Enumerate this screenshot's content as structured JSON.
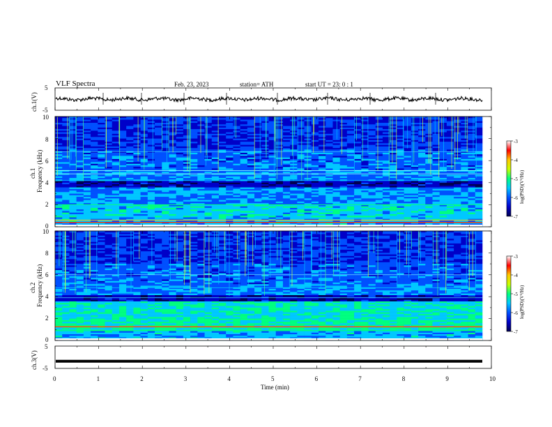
{
  "header": {
    "title": "VLF  Spectra",
    "date": "Feb. 23, 2023",
    "station": "station= ATH",
    "start": "start  UT  =    23: 0   : 1"
  },
  "chart_data": [
    {
      "type": "line",
      "name": "ch1-waveform",
      "ylabel": "ch.1(V)",
      "yticks": [
        "5",
        "-5"
      ],
      "ylim": [
        -5,
        5
      ],
      "xlim": [
        0,
        10
      ],
      "description_level": 0
    },
    {
      "type": "heatmap",
      "name": "ch1-spectrogram",
      "ylabel_top": "ch.1",
      "ylabel": "Frequency (kHz)",
      "yticks": [
        "10",
        "8",
        "6",
        "4",
        "2",
        "0"
      ],
      "ylim": [
        0,
        10
      ],
      "xlim": [
        0,
        10
      ],
      "colorbar": {
        "label": "log(PSD)(V²/Hz)",
        "ticks": [
          "-3",
          "-4",
          "-5",
          "-6",
          "-7"
        ],
        "range": [
          -7,
          -3
        ]
      }
    },
    {
      "type": "heatmap",
      "name": "ch2-spectrogram",
      "ylabel_top": "ch.2",
      "ylabel": "Frequency (kHz)",
      "yticks": [
        "10",
        "8",
        "6",
        "4",
        "2",
        "0"
      ],
      "ylim": [
        0,
        10
      ],
      "xlim": [
        0,
        10
      ],
      "colorbar": {
        "label": "log(PSD)(V²/Hz)",
        "ticks": [
          "-3",
          "-4",
          "-5",
          "-6",
          "-7"
        ],
        "range": [
          -7,
          -3
        ]
      }
    },
    {
      "type": "line",
      "name": "ch3-waveform",
      "ylabel": "ch.3(V)",
      "yticks": [
        "5",
        "-5"
      ],
      "ylim": [
        -5,
        5
      ],
      "xlim": [
        0,
        10
      ],
      "level": -1.8
    }
  ],
  "xaxis": {
    "label": "Time  (min)",
    "ticks": [
      "0",
      "1",
      "2",
      "3",
      "4",
      "5",
      "6",
      "7",
      "8",
      "9",
      "10"
    ]
  },
  "colors": {
    "colormap": [
      "#000050",
      "#0000c8",
      "#0050ff",
      "#00c8ff",
      "#00ff80",
      "#c8ff00",
      "#ffc800",
      "#ff0000",
      "#ffffff"
    ],
    "line": "#000000"
  }
}
